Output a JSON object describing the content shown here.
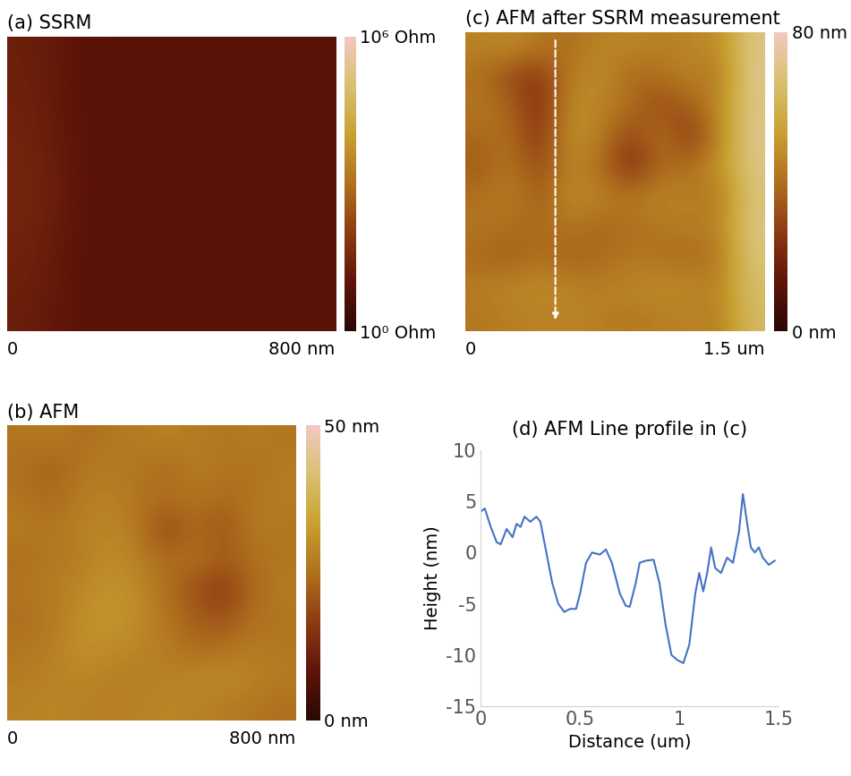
{
  "chart_data": [
    {
      "type": "heatmap",
      "title": "(a) SSRM",
      "log": true,
      "xlim": [
        0,
        800
      ],
      "xticks": [
        0,
        {
          "value": 800,
          "label": "800 nm"
        }
      ],
      "ylim": [
        0,
        800
      ],
      "tick_labels": "x",
      "cells": [
        [
          20,
          9,
          8,
          8,
          8,
          8,
          8,
          8
        ],
        [
          22,
          9,
          8,
          8,
          8,
          8,
          8,
          8
        ],
        [
          25,
          9,
          8,
          8,
          8,
          8,
          9,
          8
        ],
        [
          28,
          10,
          8,
          8,
          8,
          8,
          8,
          8
        ],
        [
          30,
          10,
          8,
          8,
          8,
          8,
          8,
          8
        ],
        [
          25,
          9,
          8,
          8,
          8,
          8,
          8,
          8
        ],
        [
          22,
          9,
          8,
          8,
          8,
          8,
          8,
          8
        ],
        [
          18,
          9,
          8,
          8,
          8,
          8,
          8,
          8
        ]
      ],
      "colorbar": {
        "range": [
          1,
          1000000
        ],
        "ticks": [
          {
            "value": 1,
            "label": "10⁰ Ohm"
          },
          {
            "value": 1000000,
            "label": "10⁶ Ohm"
          }
        ]
      }
    },
    {
      "type": "heatmap",
      "title": "(b) AFM",
      "xlim": [
        0,
        800
      ],
      "xticks": [
        0,
        {
          "value": 800,
          "label": "800 nm"
        }
      ],
      "ylim": [
        0,
        800
      ],
      "tick_labels": "x",
      "cells": [
        [
          26,
          27,
          25,
          26,
          27,
          28,
          27,
          26,
          27,
          26
        ],
        [
          25,
          22,
          26,
          27,
          26,
          24,
          27,
          26,
          25,
          27
        ],
        [
          26,
          24,
          27,
          28,
          26,
          25,
          26,
          24,
          26,
          27
        ],
        [
          27,
          26,
          28,
          29,
          27,
          18,
          24,
          20,
          27,
          26
        ],
        [
          25,
          26,
          27,
          30,
          28,
          24,
          26,
          22,
          25,
          26
        ],
        [
          26,
          27,
          29,
          31,
          30,
          25,
          20,
          16,
          24,
          27
        ],
        [
          25,
          26,
          30,
          32,
          30,
          26,
          22,
          20,
          25,
          26
        ],
        [
          26,
          27,
          31,
          30,
          29,
          27,
          24,
          25,
          27,
          26
        ],
        [
          27,
          28,
          29,
          28,
          27,
          28,
          29,
          30,
          28,
          27
        ],
        [
          28,
          29,
          28,
          27,
          28,
          29,
          28,
          27,
          26,
          25
        ]
      ],
      "colorbar": {
        "range": [
          0,
          50
        ],
        "ticks": [
          {
            "value": 0,
            "label": "0 nm"
          },
          {
            "value": 50,
            "label": "50 nm"
          }
        ]
      }
    },
    {
      "type": "heatmap",
      "title": "(c) AFM after SSRM measurement",
      "xlim": [
        0,
        1.5
      ],
      "xticks": [
        0,
        {
          "value": 1.5,
          "label": "1.5 um"
        }
      ],
      "ylim": [
        0,
        1.5
      ],
      "tick_labels": "x",
      "cells": [
        [
          45,
          48,
          42,
          40,
          45,
          47,
          44,
          46,
          48,
          70
        ],
        [
          40,
          30,
          25,
          44,
          48,
          38,
          40,
          45,
          42,
          72
        ],
        [
          42,
          38,
          22,
          48,
          46,
          40,
          30,
          35,
          48,
          70
        ],
        [
          38,
          40,
          24,
          50,
          44,
          28,
          42,
          25,
          45,
          72
        ],
        [
          35,
          42,
          30,
          46,
          40,
          22,
          38,
          40,
          50,
          70
        ],
        [
          40,
          44,
          35,
          48,
          45,
          42,
          46,
          44,
          42,
          68
        ],
        [
          42,
          40,
          38,
          42,
          38,
          40,
          42,
          44,
          45,
          70
        ],
        [
          38,
          35,
          40,
          36,
          38,
          42,
          40,
          38,
          42,
          68
        ],
        [
          44,
          46,
          48,
          45,
          44,
          46,
          48,
          47,
          45,
          66
        ],
        [
          42,
          44,
          45,
          46,
          44,
          42,
          44,
          45,
          44,
          64
        ]
      ],
      "colorbar": {
        "range": [
          0,
          80
        ],
        "ticks": [
          {
            "value": 0,
            "label": "0 nm"
          },
          {
            "value": 80,
            "label": "80 nm"
          }
        ]
      }
    },
    {
      "type": "line",
      "title": "(d) AFM Line profile in (c)",
      "x_label": "Distance (um)",
      "y_label": "Height (nm)",
      "color": "#4472c4",
      "xlim": [
        0,
        1.5
      ],
      "xticks": [
        0,
        0.5,
        1,
        1.5
      ],
      "ylim": [
        -15,
        10
      ],
      "yticks": [
        -15,
        -10,
        -5,
        0,
        5,
        10
      ],
      "x": [
        0,
        0.02,
        0.05,
        0.08,
        0.1,
        0.13,
        0.16,
        0.18,
        0.2,
        0.22,
        0.25,
        0.28,
        0.3,
        0.33,
        0.36,
        0.39,
        0.42,
        0.45,
        0.48,
        0.5,
        0.53,
        0.56,
        0.6,
        0.63,
        0.66,
        0.7,
        0.73,
        0.75,
        0.78,
        0.8,
        0.83,
        0.87,
        0.9,
        0.93,
        0.96,
        0.99,
        1.02,
        1.05,
        1.08,
        1.1,
        1.12,
        1.14,
        1.16,
        1.18,
        1.21,
        1.24,
        1.27,
        1.3,
        1.32,
        1.34,
        1.36,
        1.38,
        1.4,
        1.42,
        1.45,
        1.48
      ],
      "values": [
        4,
        4.3,
        2.5,
        1,
        0.8,
        2.3,
        1.5,
        2.8,
        2.5,
        3.5,
        3,
        3.5,
        3,
        0,
        -3,
        -5,
        -5.8,
        -5.5,
        -5.5,
        -4,
        -1,
        0,
        -0.2,
        0.3,
        -1,
        -4,
        -5.2,
        -5.3,
        -3,
        -1,
        -0.8,
        -0.7,
        -3,
        -7,
        -10,
        -10.5,
        -10.8,
        -9,
        -4,
        -2,
        -3.8,
        -2,
        0.5,
        -1.5,
        -2,
        -0.5,
        -1,
        2,
        5.7,
        3,
        0.5,
        0,
        0.5,
        -0.5,
        -1.2,
        -0.8
      ]
    }
  ]
}
